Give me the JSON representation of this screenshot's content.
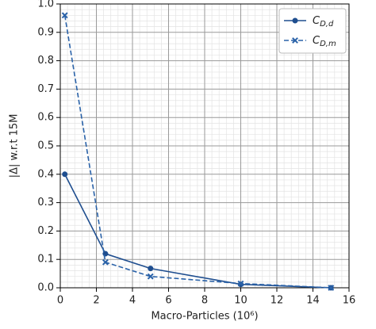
{
  "chart_data": {
    "type": "line",
    "x_label": "Macro-Particles (10⁶)",
    "y_label": "|Δ| w.r.t 15M",
    "x": [
      0.25,
      2.5,
      5,
      10,
      15
    ],
    "series": [
      {
        "name": "CD,d",
        "color": "#1f4e8f",
        "dashed": false,
        "marker": "circle",
        "values": [
          0.4,
          0.12,
          0.068,
          0.012,
          0
        ]
      },
      {
        "name": "CD,m",
        "color": "#2a62a8",
        "dashed": true,
        "marker": "x",
        "values": [
          0.96,
          0.09,
          0.04,
          0.015,
          0
        ]
      }
    ],
    "xlim": [
      0,
      16
    ],
    "xticks": [
      0,
      2,
      4,
      6,
      8,
      10,
      12,
      14,
      16
    ],
    "ylim": [
      0,
      1
    ],
    "yticks": [
      {
        "value": 0,
        "label": "0.0"
      },
      0.1,
      0.2,
      0.3,
      0.4,
      0.5,
      0.6,
      0.7,
      0.8,
      0.9,
      {
        "value": 1,
        "label": "1.0"
      }
    ],
    "grid": true,
    "minor_grid": true,
    "legend": "upper right"
  }
}
